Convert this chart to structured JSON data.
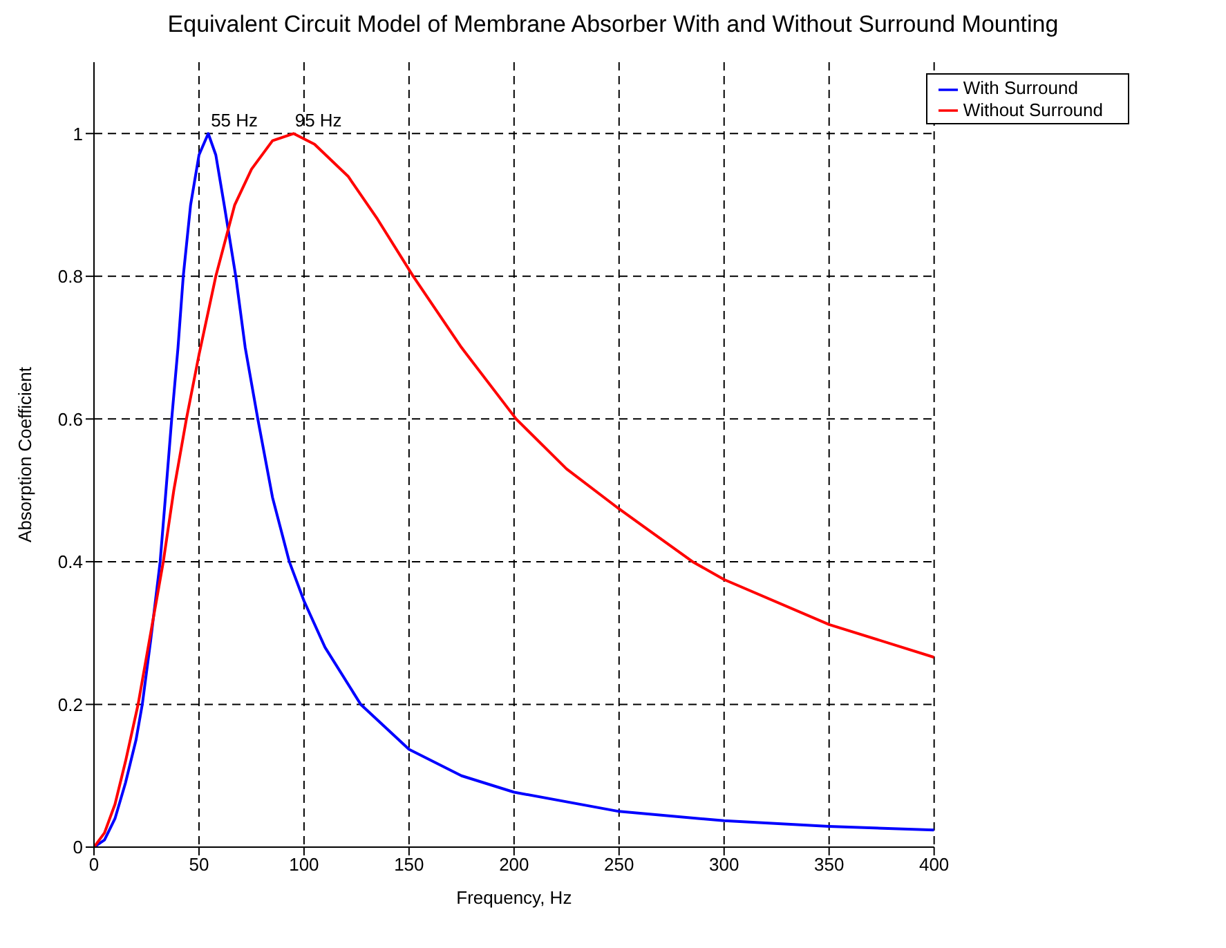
{
  "chart_data": {
    "type": "line",
    "title": "Equivalent Circuit Model of Membrane Absorber With and Without Surround Mounting",
    "xlabel": "Frequency, Hz",
    "ylabel": "Absorption Coefficient",
    "xlim": [
      0,
      400
    ],
    "xticks": [
      0,
      50,
      100,
      150,
      200,
      250,
      300,
      350,
      400
    ],
    "ylim": [
      0,
      1.1
    ],
    "yticks": [
      0,
      0.2,
      0.4,
      0.6,
      0.8,
      1
    ],
    "grid": true,
    "legend": "top right",
    "line_style": "solid",
    "marker": "none",
    "annotations": [
      {
        "text": "55 Hz",
        "x": 55,
        "y": 1
      },
      {
        "text": "95 Hz",
        "x": 95,
        "y": 1
      }
    ],
    "series": [
      {
        "name": "With Surround",
        "color": "#0000ff",
        "x": [
          0,
          5,
          10,
          15,
          20,
          23,
          27,
          31.5,
          34,
          37,
          40,
          42.5,
          46,
          50,
          54.4,
          58,
          62,
          67.5,
          72,
          78,
          85,
          93,
          100,
          110,
          127,
          150,
          175,
          200,
          250,
          300,
          350,
          400
        ],
        "values": [
          0,
          0.01,
          0.04,
          0.09,
          0.15,
          0.2,
          0.29,
          0.4,
          0.49,
          0.6,
          0.7,
          0.8,
          0.9,
          0.97,
          1,
          0.97,
          0.9,
          0.8,
          0.7,
          0.6,
          0.49,
          0.4,
          0.345,
          0.28,
          0.2,
          0.137,
          0.1,
          0.077,
          0.05,
          0.037,
          0.029,
          0.024
        ]
      },
      {
        "name": "Without Surround",
        "color": "#ff0000",
        "x": [
          0,
          5,
          10,
          15,
          21,
          27,
          33,
          38,
          44,
          50,
          58,
          67,
          75,
          85,
          95,
          105,
          121,
          135,
          152,
          175,
          201,
          225,
          250,
          285,
          300,
          350,
          400
        ],
        "values": [
          0,
          0.02,
          0.06,
          0.12,
          0.2,
          0.3,
          0.4,
          0.5,
          0.6,
          0.69,
          0.8,
          0.9,
          0.95,
          0.99,
          1,
          0.985,
          0.94,
          0.88,
          0.8,
          0.7,
          0.6,
          0.53,
          0.474,
          0.4,
          0.375,
          0.312,
          0.266
        ]
      }
    ]
  }
}
